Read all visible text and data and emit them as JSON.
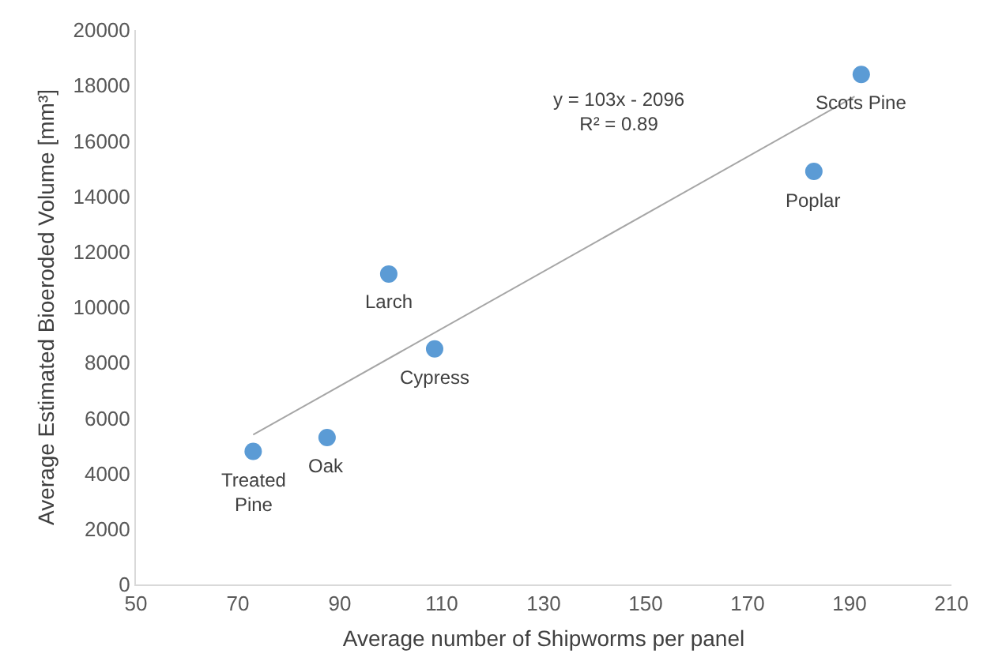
{
  "chart_data": {
    "type": "scatter",
    "xlabel": "Average number of Shipworms per panel",
    "ylabel": "Average Estimated Bioeroded Volume [mm³]",
    "xlim": [
      50,
      210
    ],
    "xticks": [
      50,
      70,
      90,
      110,
      130,
      150,
      170,
      190,
      210
    ],
    "ylim": [
      0,
      20000
    ],
    "yticks": [
      0,
      2000,
      4000,
      6000,
      8000,
      10000,
      12000,
      14000,
      16000,
      18000,
      20000
    ],
    "marker": "circle",
    "series": [
      {
        "color": "#5b9bd5",
        "x": [
          73,
          87.5,
          99.6,
          108.6,
          183,
          192.3
        ],
        "values": [
          4800,
          5300,
          11200,
          8500,
          14900,
          18400
        ]
      },
      {
        "type": "line",
        "color": "#a6a6a6",
        "line_style": "solid",
        "marker": "none",
        "x": [
          73,
          191
        ],
        "values": [
          5400,
          17600
        ]
      }
    ],
    "annotations": [
      {
        "text": "Treated\nPine",
        "x": 73,
        "y": 4800
      },
      {
        "text": "Oak",
        "x": 87.5,
        "y": 5300
      },
      {
        "text": "Larch",
        "x": 99.6,
        "y": 11200
      },
      {
        "text": "Cypress",
        "x": 108.6,
        "y": 8500
      },
      {
        "text": "Poplar",
        "x": 183,
        "y": 14900
      },
      {
        "text": "Scots Pine",
        "x": 192.3,
        "y": 18400
      },
      "y = 103x - 2096\nR² = 0.89"
    ]
  }
}
